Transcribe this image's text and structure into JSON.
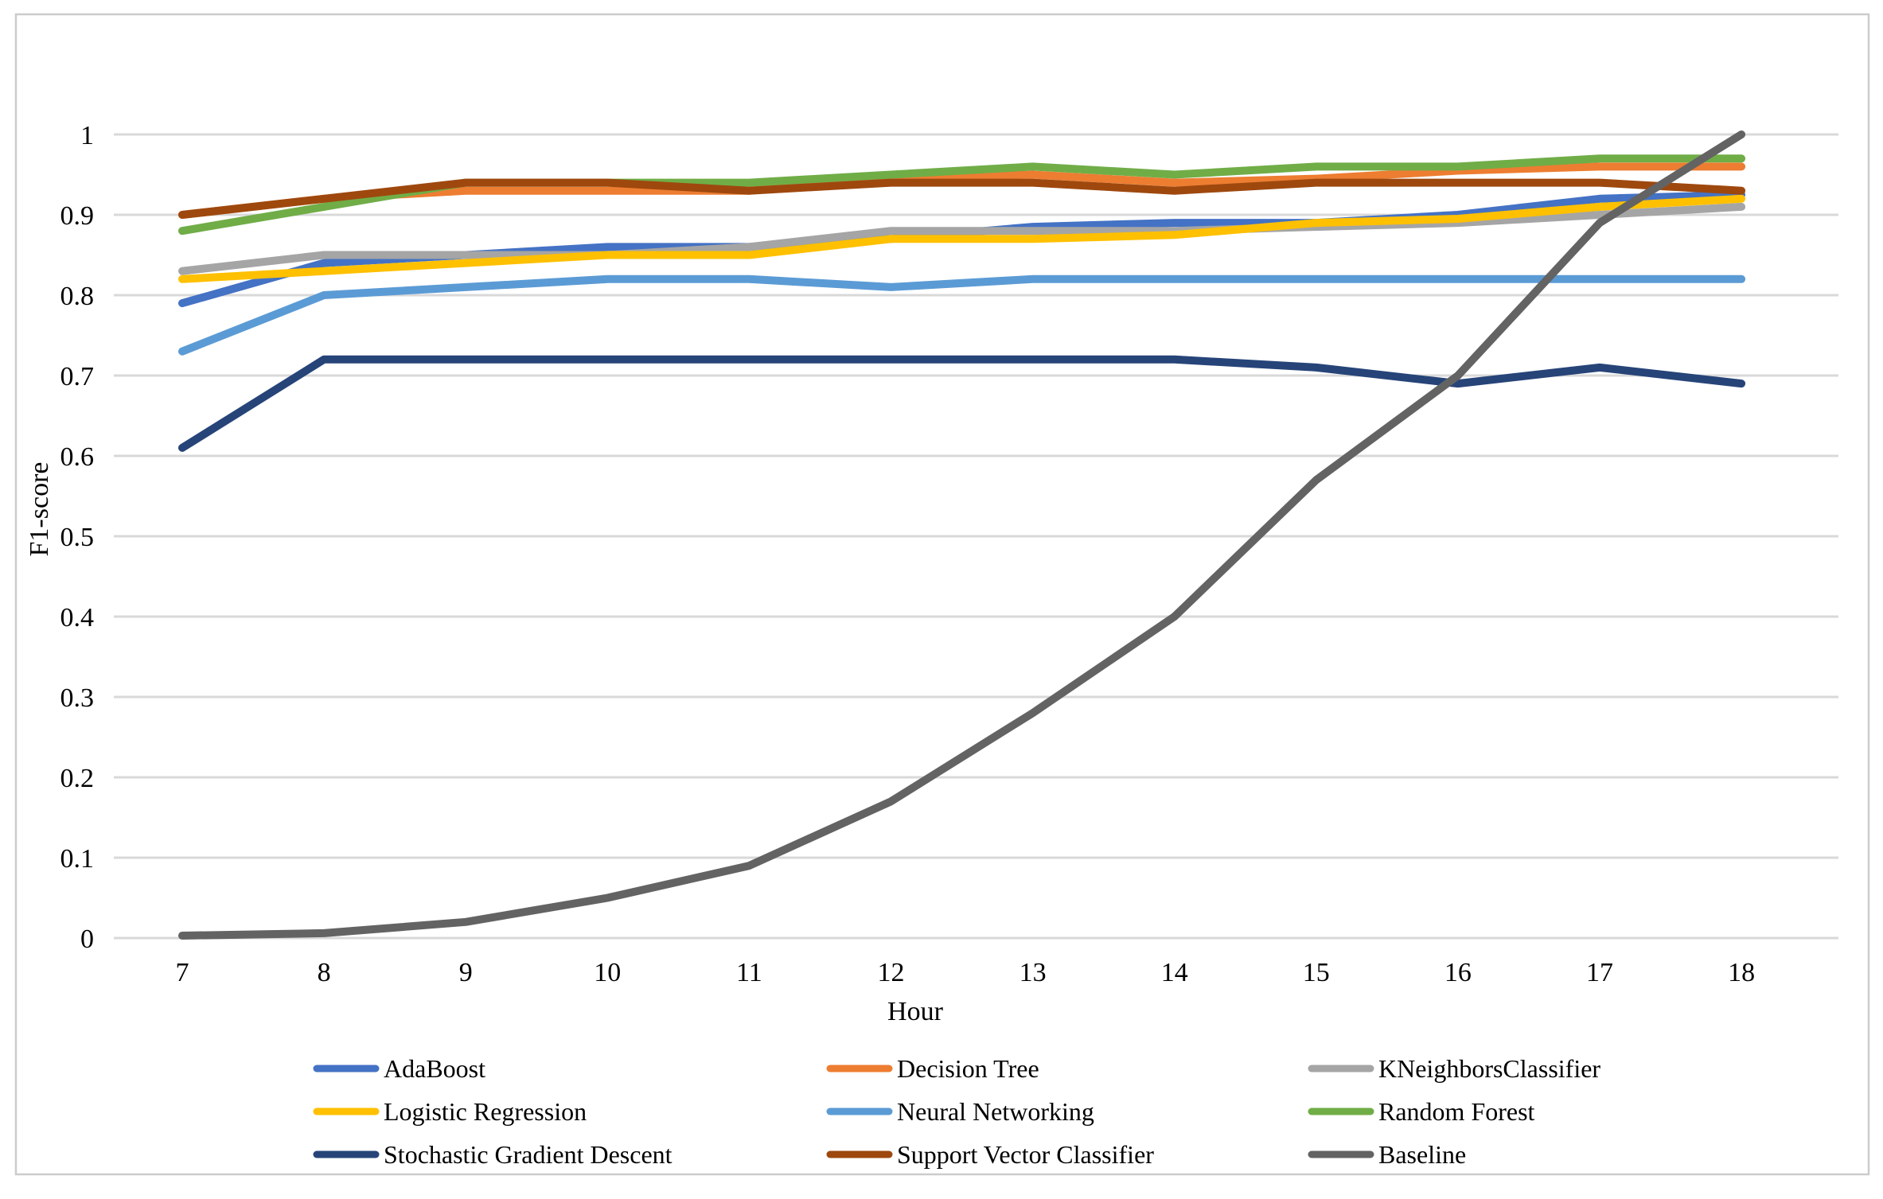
{
  "figure": {
    "background": "#ffffff",
    "border_color": "#cccccc",
    "text_color": "#000000"
  },
  "chart_data": {
    "type": "line",
    "title": "",
    "xlabel": "Hour",
    "ylabel": "F1-score",
    "x": [
      7,
      8,
      9,
      10,
      11,
      12,
      13,
      14,
      15,
      16,
      17,
      18
    ],
    "ylim": [
      0,
      1
    ],
    "ytick_step": 0.1,
    "ytick_labels": [
      "0",
      "0.1",
      "0.2",
      "0.3",
      "0.4",
      "0.5",
      "0.6",
      "0.7",
      "0.8",
      "0.9",
      "1"
    ],
    "grid": true,
    "grid_color": "#d9d9d9",
    "legend_position": "bottom",
    "legend_columns": 3,
    "series": [
      {
        "name": "AdaBoost",
        "color": "#4472C4",
        "values": [
          0.79,
          0.84,
          0.85,
          0.86,
          0.86,
          0.87,
          0.885,
          0.89,
          0.89,
          0.9,
          0.92,
          0.925
        ]
      },
      {
        "name": "Decision Tree",
        "color": "#ED7D31",
        "values": [
          0.9,
          0.92,
          0.93,
          0.93,
          0.93,
          0.945,
          0.95,
          0.94,
          0.945,
          0.955,
          0.96,
          0.96
        ]
      },
      {
        "name": "KNeighborsClassifier",
        "color": "#A5A5A5",
        "values": [
          0.83,
          0.85,
          0.85,
          0.85,
          0.86,
          0.88,
          0.88,
          0.88,
          0.885,
          0.89,
          0.9,
          0.91
        ]
      },
      {
        "name": "Logistic Regression",
        "color": "#FFC000",
        "values": [
          0.82,
          0.83,
          0.84,
          0.85,
          0.85,
          0.87,
          0.87,
          0.875,
          0.89,
          0.895,
          0.91,
          0.92
        ]
      },
      {
        "name": "Neural Networking",
        "color": "#5B9BD5",
        "values": [
          0.73,
          0.8,
          0.81,
          0.82,
          0.82,
          0.81,
          0.82,
          0.82,
          0.82,
          0.82,
          0.82,
          0.82
        ]
      },
      {
        "name": "Random Forest",
        "color": "#70AD47",
        "values": [
          0.88,
          0.91,
          0.94,
          0.94,
          0.94,
          0.95,
          0.96,
          0.95,
          0.96,
          0.96,
          0.97,
          0.97
        ]
      },
      {
        "name": "Stochastic Gradient Descent",
        "color": "#264478",
        "values": [
          0.61,
          0.72,
          0.72,
          0.72,
          0.72,
          0.72,
          0.72,
          0.72,
          0.71,
          0.69,
          0.71,
          0.69
        ]
      },
      {
        "name": "Support Vector Classifier",
        "color": "#9E480E",
        "values": [
          0.9,
          0.92,
          0.94,
          0.94,
          0.93,
          0.94,
          0.94,
          0.93,
          0.94,
          0.94,
          0.94,
          0.93
        ]
      },
      {
        "name": "Baseline",
        "color": "#636363",
        "values": [
          0.003,
          0.006,
          0.02,
          0.05,
          0.09,
          0.17,
          0.28,
          0.4,
          0.57,
          0.7,
          0.89,
          1.0
        ]
      }
    ]
  }
}
